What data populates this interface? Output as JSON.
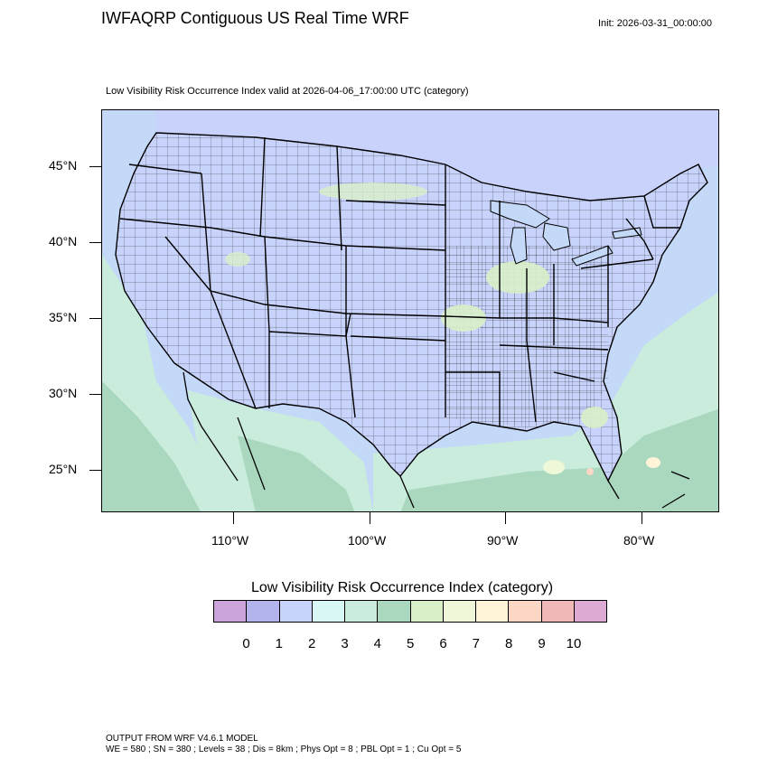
{
  "header": {
    "title": "IWFAQRP Contiguous US Real Time WRF",
    "init": "Init: 2026-03-31_00:00:00",
    "subtitle": "Low Visibility Risk Occurrence Index valid at 2026-04-06_17:00:00 UTC   (category)"
  },
  "map": {
    "projection": "Lambert conformal",
    "lat_labels": [
      "45°N",
      "40°N",
      "35°N",
      "30°N",
      "25°N"
    ],
    "lon_labels": [
      "110°W",
      "100°W",
      "90°W",
      "80°W"
    ],
    "ocean_color": "#c4d8f8",
    "land_color": "#c9d2fb",
    "boundary_color": "#000000"
  },
  "colorbar": {
    "title": "Low Visibility Risk Occurrence Index  (category)",
    "labels": [
      "0",
      "1",
      "2",
      "3",
      "4",
      "5",
      "6",
      "7",
      "8",
      "9",
      "10"
    ],
    "colors": [
      "#cba5da",
      "#b3b4ee",
      "#c8d3fb",
      "#d8f7f5",
      "#c9ecdc",
      "#a9d8bf",
      "#d9efc8",
      "#eef8d8",
      "#fff4d8",
      "#fcd7c6",
      "#f1b8b8",
      "#dcaad2"
    ]
  },
  "footer": {
    "line1": "OUTPUT FROM WRF V4.6.1 MODEL",
    "line2": "WE = 580 ; SN = 380 ; Levels = 38 ; Dis = 8km ; Phys Opt = 8 ; PBL Opt = 1 ; Cu Opt = 5"
  }
}
